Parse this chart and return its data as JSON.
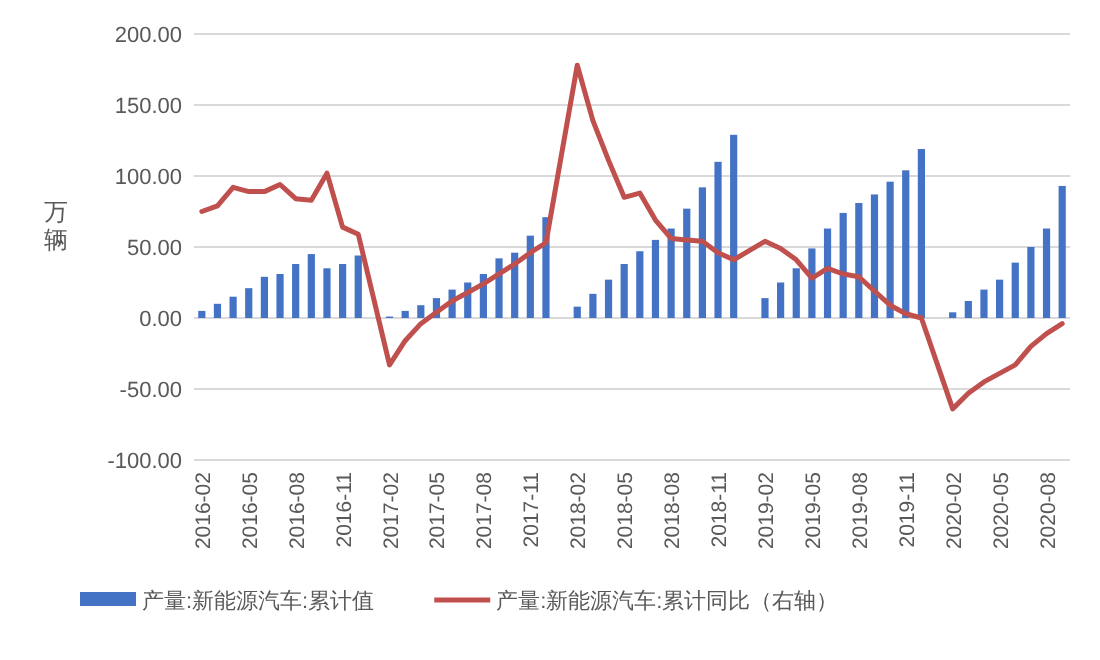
{
  "chart_data": {
    "type": "bar",
    "ylabel": "万辆",
    "grid": "y",
    "legend": "bottom",
    "categories": [
      "2016-02",
      null,
      null,
      "2016-05",
      null,
      null,
      "2016-08",
      null,
      null,
      "2016-11",
      null,
      null,
      "2017-02",
      null,
      null,
      "2017-05",
      null,
      null,
      "2017-08",
      null,
      null,
      "2017-11",
      null,
      null,
      "2018-02",
      null,
      null,
      "2018-05",
      null,
      null,
      "2018-08",
      null,
      null,
      "2018-11",
      null,
      null,
      "2019-02",
      null,
      null,
      "2019-05",
      null,
      null,
      "2019-08",
      null,
      null,
      "2019-11",
      null,
      null,
      "2020-02",
      null,
      null,
      "2020-05",
      null,
      null,
      "2020-08",
      null
    ],
    "ylim": [
      -100,
      200
    ],
    "yticks": [
      {
        "value": -100,
        "label": "-100.00"
      },
      {
        "value": -50,
        "label": "-50.00"
      },
      {
        "value": 0,
        "label": "0.00"
      },
      {
        "value": 50,
        "label": "50.00"
      },
      {
        "value": 100,
        "label": "100.00"
      },
      {
        "value": 150,
        "label": "150.00"
      },
      {
        "value": 200,
        "label": "200.00"
      }
    ],
    "series": [
      {
        "name": "产量:新能源汽车:累计值",
        "color": "#4472c4",
        "values": [
          5,
          10,
          15,
          21,
          29,
          31,
          38,
          45,
          35,
          38,
          44,
          null,
          1,
          5,
          9,
          14,
          20,
          25,
          31,
          42,
          46,
          58,
          71,
          null,
          8,
          17,
          27,
          38,
          47,
          55,
          63,
          77,
          92,
          110,
          129,
          null,
          14,
          25,
          35,
          49,
          63,
          74,
          81,
          87,
          96,
          104,
          119,
          null,
          4,
          12,
          20,
          27,
          39,
          50,
          63,
          93
        ]
      },
      {
        "name": "产量:新能源汽车:累计同比（右轴）",
        "type": "line",
        "color": "#c0504d",
        "values": [
          75,
          79,
          92,
          89,
          89,
          94,
          84,
          83,
          102,
          64,
          59,
          null,
          -33,
          -16,
          -4,
          4,
          12,
          18,
          24,
          31,
          38,
          46,
          53,
          null,
          178,
          139,
          111,
          85,
          88,
          69,
          56,
          55,
          54,
          46,
          41,
          null,
          54,
          49,
          41,
          28,
          35,
          31,
          29,
          19,
          9,
          3,
          0,
          null,
          -64,
          -53,
          -45,
          -39,
          -33,
          -20,
          -11,
          -4
        ]
      }
    ]
  }
}
